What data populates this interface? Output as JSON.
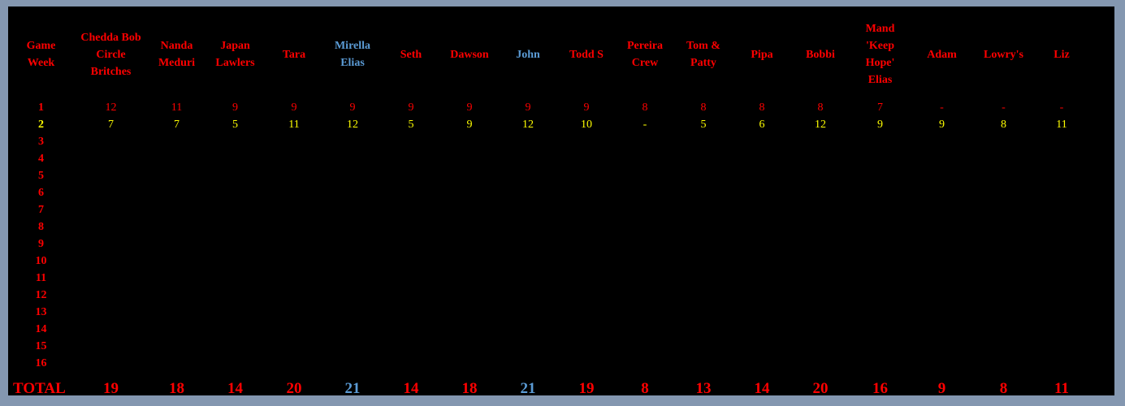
{
  "header": {
    "week_label": "Game\nWeek",
    "players": [
      "Chedda Bob\nCircle\nBritches",
      "Nanda\nMeduri",
      "Japan\nLawlers",
      "Tara",
      "Mirella\nElias",
      "Seth",
      "Dawson",
      "John",
      "Todd S",
      "Pereira\nCrew",
      "Tom &\nPatty",
      "Pipa",
      "Bobbi",
      "Mand\n'Keep\nHope'\nElias",
      "Adam",
      "Lowry's",
      "Liz"
    ]
  },
  "weeks": [
    {
      "week": "1",
      "scores": [
        "12",
        "11",
        "9",
        "9",
        "9",
        "9",
        "9",
        "9",
        "9",
        "8",
        "8",
        "8",
        "8",
        "7",
        "-",
        "-",
        "-"
      ]
    },
    {
      "week": "2",
      "scores": [
        "7",
        "7",
        "5",
        "11",
        "12",
        "5",
        "9",
        "12",
        "10",
        "-",
        "5",
        "6",
        "12",
        "9",
        "9",
        "8",
        "11"
      ]
    },
    {
      "week": "3",
      "scores": []
    },
    {
      "week": "4",
      "scores": []
    },
    {
      "week": "5",
      "scores": []
    },
    {
      "week": "6",
      "scores": []
    },
    {
      "week": "7",
      "scores": []
    },
    {
      "week": "8",
      "scores": []
    },
    {
      "week": "9",
      "scores": []
    },
    {
      "week": "10",
      "scores": []
    },
    {
      "week": "11",
      "scores": []
    },
    {
      "week": "12",
      "scores": []
    },
    {
      "week": "13",
      "scores": []
    },
    {
      "week": "14",
      "scores": []
    },
    {
      "week": "15",
      "scores": []
    },
    {
      "week": "16",
      "scores": []
    }
  ],
  "total": {
    "label": "TOTAL",
    "values": [
      "19",
      "18",
      "14",
      "20",
      "21",
      "14",
      "18",
      "21",
      "19",
      "8",
      "13",
      "14",
      "20",
      "16",
      "9",
      "8",
      "11"
    ]
  },
  "colors": {
    "default": "#ff0000",
    "highlight_leaders": "#5b9bd5",
    "current_week": "#ffff00",
    "background": "#000000",
    "frame": "#8497b0"
  },
  "leaders": [
    4,
    7
  ]
}
